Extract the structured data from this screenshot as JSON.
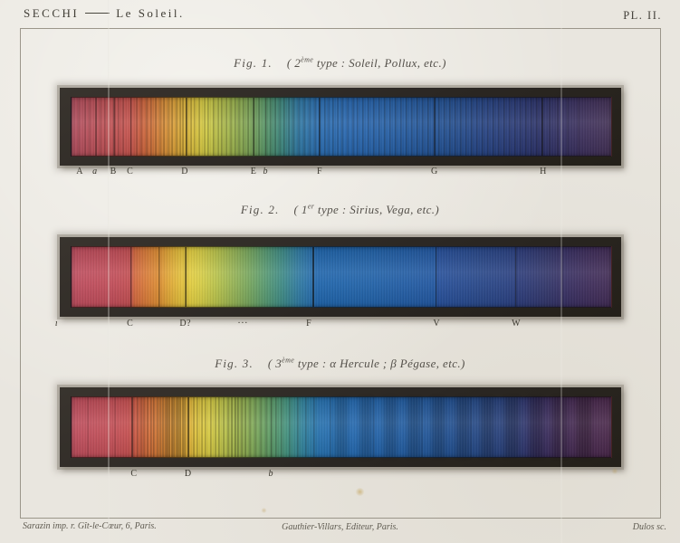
{
  "page": {
    "header_author": "SECCHI",
    "header_work": "Le Soleil.",
    "plate_label": "PL. II.",
    "footer_left": "Sarazin imp. r. Gît-le-Cœur, 6, Paris.",
    "footer_center": "Gauthier-Villars, Editeur, Paris.",
    "footer_right": "Dulos sc.",
    "paper_color": "#e9e6df",
    "ink_color": "#45423a"
  },
  "figures": [
    {
      "fig_label": "Fig. 1.",
      "type_pre": "( 2",
      "type_sup": "ème",
      "type_post": " type :  Soleil, Pollux, etc.)",
      "gradient": [
        [
          0,
          "#b04e5e"
        ],
        [
          4,
          "#b94f58"
        ],
        [
          8,
          "#c05152"
        ],
        [
          11,
          "#c4534c"
        ],
        [
          13,
          "#ca613e"
        ],
        [
          15,
          "#d0743a"
        ],
        [
          17,
          "#d58a37"
        ],
        [
          19,
          "#d89e37"
        ],
        [
          21,
          "#dab23a"
        ],
        [
          23,
          "#d8c23e"
        ],
        [
          25,
          "#cfc944"
        ],
        [
          27,
          "#b9bf48"
        ],
        [
          30,
          "#9ab14d"
        ],
        [
          33,
          "#7ba356"
        ],
        [
          36,
          "#559266"
        ],
        [
          39,
          "#3d867e"
        ],
        [
          42,
          "#2f76a0"
        ],
        [
          46,
          "#2a6cb0"
        ],
        [
          52,
          "#2866ae"
        ],
        [
          58,
          "#2660a6"
        ],
        [
          64,
          "#24589c"
        ],
        [
          70,
          "#234f90"
        ],
        [
          76,
          "#264484"
        ],
        [
          82,
          "#293a76"
        ],
        [
          87,
          "#2c3268"
        ],
        [
          91,
          "#343060"
        ],
        [
          95,
          "#3c2f5a"
        ],
        [
          100,
          "#423054"
        ]
      ],
      "lines": [
        [
          1.4,
          1,
          0.2
        ],
        [
          2.6,
          1,
          0.28
        ],
        [
          3.4,
          1,
          0.22
        ],
        [
          4.5,
          2,
          0.32
        ],
        [
          5.3,
          1,
          0.22
        ],
        [
          6.2,
          1,
          0.28
        ],
        [
          7.9,
          1.5,
          0.42
        ],
        [
          8.7,
          1,
          0.26
        ],
        [
          9.6,
          1,
          0.28
        ],
        [
          11,
          1.8,
          0.5
        ],
        [
          12.1,
          1,
          0.28
        ],
        [
          13,
          1,
          0.3
        ],
        [
          13.9,
          1,
          0.32
        ],
        [
          14.8,
          1,
          0.28
        ],
        [
          15.6,
          1,
          0.32
        ],
        [
          16.4,
          1,
          0.28
        ],
        [
          17.1,
          1,
          0.33
        ],
        [
          17.9,
          1,
          0.28
        ],
        [
          18.6,
          1,
          0.33
        ],
        [
          19.4,
          1,
          0.36
        ],
        [
          20.1,
          1,
          0.32
        ],
        [
          20.7,
          1,
          0.36
        ],
        [
          21.3,
          2,
          0.52
        ],
        [
          22.1,
          1,
          0.33
        ],
        [
          22.9,
          1,
          0.28
        ],
        [
          23.7,
          1,
          0.32
        ],
        [
          24.6,
          1,
          0.28
        ],
        [
          25.4,
          1,
          0.32
        ],
        [
          26.3,
          1,
          0.36
        ],
        [
          27.1,
          1,
          0.28
        ],
        [
          27.9,
          1,
          0.33
        ],
        [
          28.7,
          1,
          0.28
        ],
        [
          29.5,
          1,
          0.33
        ],
        [
          30.3,
          1,
          0.28
        ],
        [
          31.1,
          1,
          0.33
        ],
        [
          31.9,
          1,
          0.28
        ],
        [
          32.7,
          1,
          0.33
        ],
        [
          33.8,
          1.6,
          0.48
        ],
        [
          34.7,
          1,
          0.32
        ],
        [
          36,
          1.6,
          0.46
        ],
        [
          36.9,
          1,
          0.28
        ],
        [
          37.7,
          1,
          0.32
        ],
        [
          38.6,
          1,
          0.28
        ],
        [
          39.5,
          1,
          0.32
        ],
        [
          40.3,
          1,
          0.28
        ],
        [
          41.1,
          1,
          0.32
        ],
        [
          42.1,
          1,
          0.28
        ],
        [
          43.1,
          1,
          0.32
        ],
        [
          44.1,
          1,
          0.28
        ],
        [
          45.1,
          1,
          0.32
        ],
        [
          46,
          2,
          0.52
        ],
        [
          46.9,
          1,
          0.33
        ],
        [
          47.7,
          1,
          0.28
        ],
        [
          48.5,
          1,
          0.33
        ],
        [
          49.3,
          1,
          0.28
        ],
        [
          50.1,
          1,
          0.33
        ],
        [
          51.1,
          1,
          0.28
        ],
        [
          52.1,
          1,
          0.33
        ],
        [
          53.1,
          1,
          0.28
        ],
        [
          54.1,
          1,
          0.33
        ],
        [
          55.1,
          1,
          0.28
        ],
        [
          56.1,
          1,
          0.33
        ],
        [
          57.1,
          1,
          0.28
        ],
        [
          58.1,
          1,
          0.33
        ],
        [
          59.1,
          1,
          0.28
        ],
        [
          60.1,
          1,
          0.33
        ],
        [
          61.1,
          1,
          0.28
        ],
        [
          62.1,
          1,
          0.33
        ],
        [
          63.1,
          1,
          0.28
        ],
        [
          64.1,
          1,
          0.33
        ],
        [
          65.1,
          1,
          0.28
        ],
        [
          66.1,
          1,
          0.33
        ],
        [
          67.2,
          2,
          0.48
        ],
        [
          68.2,
          1,
          0.33
        ],
        [
          69.2,
          1,
          0.28
        ],
        [
          70.2,
          1,
          0.33
        ],
        [
          71.2,
          1,
          0.28
        ],
        [
          72.2,
          1,
          0.33
        ],
        [
          73.2,
          1,
          0.28
        ],
        [
          74.2,
          1,
          0.33
        ],
        [
          75.2,
          1,
          0.28
        ],
        [
          76.2,
          1,
          0.33
        ],
        [
          77.2,
          1,
          0.28
        ],
        [
          78.2,
          1,
          0.33
        ],
        [
          79.2,
          1,
          0.28
        ],
        [
          80.2,
          1,
          0.33
        ],
        [
          81.2,
          1,
          0.28
        ],
        [
          82.2,
          1,
          0.33
        ],
        [
          83.2,
          1,
          0.28
        ],
        [
          84.2,
          1,
          0.33
        ],
        [
          85.2,
          1,
          0.28
        ],
        [
          86.2,
          1,
          0.3
        ],
        [
          87.3,
          2,
          0.48
        ],
        [
          88.6,
          1,
          0.28
        ],
        [
          90.1,
          1,
          0.26
        ],
        [
          92,
          1,
          0.24
        ],
        [
          94,
          1,
          0.2
        ]
      ],
      "labels": [
        {
          "t": "A",
          "x": 1.7
        },
        {
          "t": "a",
          "x": 4.5,
          "i": true
        },
        {
          "t": "B",
          "x": 7.9
        },
        {
          "t": "C",
          "x": 11
        },
        {
          "t": "D",
          "x": 21.1
        },
        {
          "t": "E",
          "x": 33.8
        },
        {
          "t": "b",
          "x": 36,
          "i": true
        },
        {
          "t": "F",
          "x": 46
        },
        {
          "t": "G",
          "x": 67.2
        },
        {
          "t": "H",
          "x": 87.3
        }
      ]
    },
    {
      "fig_label": "Fig. 2.",
      "type_pre": "( 1",
      "type_sup": "er",
      "type_post": " type :  Sirius, Vega, etc.)",
      "gradient": [
        [
          0,
          "#bd4d5e"
        ],
        [
          8,
          "#c14d58"
        ],
        [
          10.8,
          "#c24f52"
        ],
        [
          11.6,
          "#d2683f"
        ],
        [
          14,
          "#d87c37"
        ],
        [
          16.2,
          "#dc8e33"
        ],
        [
          18,
          "#dfa635"
        ],
        [
          20,
          "#e1bc3a"
        ],
        [
          22,
          "#e2cd40"
        ],
        [
          24,
          "#d6cc45"
        ],
        [
          27,
          "#b6c14b"
        ],
        [
          30,
          "#95b254"
        ],
        [
          33,
          "#75a55e"
        ],
        [
          36,
          "#569871"
        ],
        [
          39,
          "#3e8a85"
        ],
        [
          42,
          "#307aa0"
        ],
        [
          45.2,
          "#2469ae"
        ],
        [
          45.8,
          "#1f65ac"
        ],
        [
          55,
          "#2162a8"
        ],
        [
          67.3,
          "#2257a0"
        ],
        [
          68,
          "#27509a"
        ],
        [
          75,
          "#28488a"
        ],
        [
          82,
          "#2a4080"
        ],
        [
          82.8,
          "#2c3c7a"
        ],
        [
          88,
          "#32366a"
        ],
        [
          92,
          "#382f61"
        ],
        [
          96,
          "#3e2d5a"
        ],
        [
          100,
          "#422c55"
        ]
      ],
      "lines": [
        [
          11,
          1.6,
          0.6
        ],
        [
          16.2,
          1.2,
          0.5
        ],
        [
          21.2,
          1.6,
          0.55
        ],
        [
          44.8,
          2,
          0.6
        ],
        [
          67.6,
          1.6,
          0.55
        ],
        [
          82.3,
          1.6,
          0.55
        ],
        [
          91,
          1,
          0.3
        ]
      ],
      "labels": [
        {
          "t": "ı",
          "x": -2.6,
          "i": true
        },
        {
          "t": "C",
          "x": 11
        },
        {
          "t": "D?",
          "x": 21.2
        },
        {
          "t": "···",
          "x": 31.8
        },
        {
          "t": "F",
          "x": 44
        },
        {
          "t": "V",
          "x": 67.6
        },
        {
          "t": "W",
          "x": 82.3
        }
      ]
    },
    {
      "fig_label": "Fig. 3.",
      "type_pre": "( 3",
      "type_sup": "ème",
      "type_post": " type :  α Hercule ; β Pégase, etc.)",
      "gradient": [
        [
          0,
          "#bd4d5c"
        ],
        [
          7,
          "#c14e56"
        ],
        [
          10.5,
          "#c44f50"
        ],
        [
          12,
          "#cb5a42"
        ],
        [
          14,
          "#d26c3b"
        ],
        [
          16.5,
          "#d78036"
        ],
        [
          19,
          "#d99434"
        ],
        [
          21.5,
          "#dcab37"
        ],
        [
          23,
          "#dec23c"
        ],
        [
          25.5,
          "#d7ca43"
        ],
        [
          28,
          "#bdc248"
        ],
        [
          31,
          "#9db44e"
        ],
        [
          34,
          "#7ba658"
        ],
        [
          37,
          "#5c9a67"
        ],
        [
          40,
          "#42907e"
        ],
        [
          43,
          "#30809c"
        ],
        [
          46,
          "#2670ae"
        ],
        [
          52,
          "#2468ae"
        ],
        [
          58,
          "#2361a6"
        ],
        [
          64,
          "#22599c"
        ],
        [
          70,
          "#225090"
        ],
        [
          76,
          "#254682"
        ],
        [
          82,
          "#2a3c74"
        ],
        [
          86,
          "#332e62"
        ],
        [
          90,
          "#3f2b56"
        ],
        [
          94,
          "#472a50"
        ],
        [
          100,
          "#4a284a"
        ]
      ],
      "lines": [
        [
          3,
          1,
          0.2
        ],
        [
          8,
          1,
          0.22
        ],
        [
          11.3,
          1.6,
          0.5
        ],
        [
          12.2,
          1,
          0.3
        ],
        [
          12.9,
          1,
          0.35
        ],
        [
          13.5,
          1,
          0.35
        ],
        [
          14.1,
          1,
          0.35
        ],
        [
          14.7,
          1,
          0.35
        ],
        [
          15.3,
          1,
          0.38
        ],
        [
          15.9,
          1,
          0.38
        ],
        [
          16.4,
          1,
          0.4
        ],
        [
          17,
          1,
          0.45
        ],
        [
          17.4,
          1,
          0.48
        ],
        [
          17.8,
          1,
          0.5
        ],
        [
          18.2,
          1,
          0.5
        ],
        [
          18.6,
          1,
          0.5
        ],
        [
          19,
          1,
          0.5
        ],
        [
          19.4,
          1,
          0.5
        ],
        [
          19.8,
          1,
          0.48
        ],
        [
          20.2,
          1,
          0.48
        ],
        [
          20.6,
          1,
          0.45
        ],
        [
          21,
          1,
          0.45
        ],
        [
          21.7,
          1.8,
          0.55
        ],
        [
          22.6,
          1,
          0.35
        ],
        [
          23.3,
          1,
          0.3
        ],
        [
          24.1,
          1,
          0.32
        ],
        [
          24.9,
          1,
          0.3
        ],
        [
          25.8,
          1,
          0.34
        ],
        [
          26.6,
          1,
          0.3
        ],
        [
          27.4,
          1,
          0.36
        ],
        [
          28.2,
          1,
          0.34
        ],
        [
          29,
          1,
          0.4
        ],
        [
          29.7,
          1,
          0.45
        ],
        [
          30.3,
          1,
          0.48
        ],
        [
          30.9,
          1,
          0.45
        ],
        [
          31.5,
          1,
          0.4
        ],
        [
          32.2,
          1,
          0.36
        ],
        [
          33,
          1,
          0.34
        ],
        [
          34,
          1,
          0.3
        ],
        [
          35,
          1,
          0.32
        ],
        [
          36,
          1,
          0.3
        ],
        [
          37,
          1.6,
          0.46
        ],
        [
          38,
          1,
          0.3
        ],
        [
          39,
          1,
          0.28
        ],
        [
          40.5,
          1,
          0.28
        ],
        [
          42,
          1,
          0.3
        ],
        [
          43.5,
          1,
          0.28
        ],
        [
          45,
          1,
          0.3
        ],
        [
          48,
          1,
          0.26
        ],
        [
          56,
          1,
          0.22
        ],
        [
          65,
          1,
          0.22
        ],
        [
          74,
          1,
          0.2
        ],
        [
          50,
          14,
          0.16,
          "s"
        ],
        [
          54.5,
          14,
          0.17,
          "s"
        ],
        [
          59,
          14,
          0.17,
          "s"
        ],
        [
          63.5,
          14,
          0.18,
          "s"
        ],
        [
          68,
          14,
          0.18,
          "s"
        ],
        [
          72.5,
          14,
          0.18,
          "s"
        ],
        [
          77,
          14,
          0.18,
          "s"
        ],
        [
          81.5,
          15,
          0.2,
          "s"
        ],
        [
          86,
          15,
          0.2,
          "s"
        ],
        [
          90.5,
          16,
          0.2,
          "s"
        ],
        [
          95,
          16,
          0.22,
          "s"
        ]
      ],
      "labels": [
        {
          "t": "C",
          "x": 11.7
        },
        {
          "t": "D",
          "x": 21.7
        },
        {
          "t": "b",
          "x": 37,
          "i": true
        }
      ]
    }
  ]
}
